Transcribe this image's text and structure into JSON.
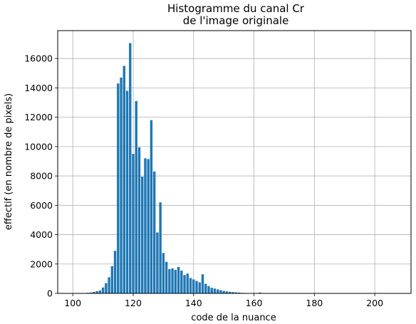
{
  "chart_data": {
    "type": "bar",
    "title_lines": [
      "Histogramme du canal Cr",
      "de l'image originale"
    ],
    "xlabel": "code de la nuance",
    "ylabel": "effectif (en nombre de pixels)",
    "xlim": [
      95,
      212
    ],
    "ylim": [
      0,
      17900
    ],
    "xticks": [
      100,
      120,
      140,
      160,
      180,
      200
    ],
    "yticks": [
      0,
      2000,
      4000,
      6000,
      8000,
      10000,
      12000,
      14000,
      16000
    ],
    "grid": true,
    "bar_color": "#1f77b4",
    "x": [
      104,
      105,
      106,
      107,
      108,
      109,
      110,
      111,
      112,
      113,
      114,
      115,
      116,
      117,
      118,
      119,
      120,
      121,
      122,
      123,
      124,
      125,
      126,
      127,
      128,
      129,
      130,
      131,
      132,
      133,
      134,
      135,
      136,
      137,
      138,
      139,
      140,
      141,
      142,
      143,
      144,
      145,
      146,
      147,
      148,
      149,
      150,
      151,
      152,
      153,
      154,
      155,
      156,
      157,
      158,
      159,
      160,
      161,
      162
    ],
    "values": [
      20,
      40,
      60,
      100,
      150,
      200,
      400,
      700,
      1100,
      1850,
      2900,
      14300,
      14700,
      15500,
      13800,
      17050,
      9500,
      13100,
      9950,
      7950,
      9200,
      9150,
      11800,
      8300,
      4150,
      6200,
      2750,
      2150,
      1650,
      1700,
      1600,
      1800,
      1550,
      1250,
      1350,
      1050,
      950,
      850,
      750,
      1300,
      650,
      500,
      380,
      330,
      270,
      220,
      170,
      140,
      110,
      90,
      70,
      55,
      40,
      30,
      25,
      20,
      15,
      10,
      60
    ]
  }
}
